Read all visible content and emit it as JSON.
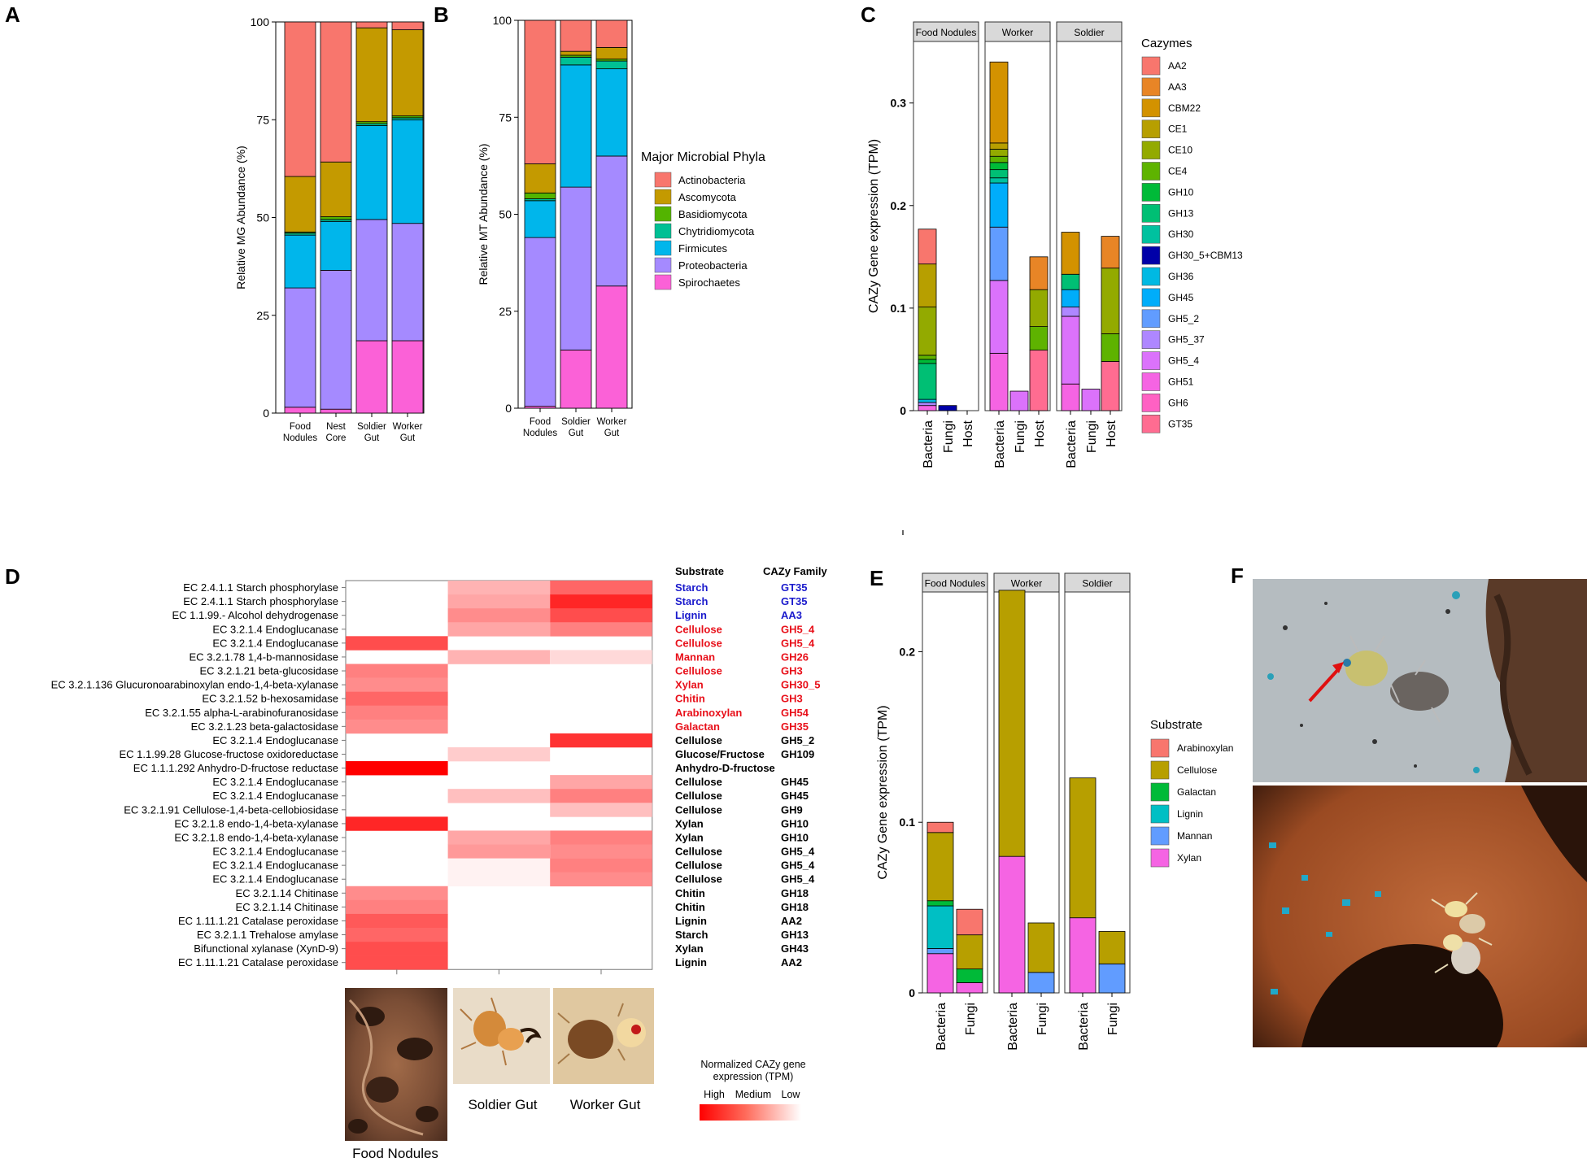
{
  "colors": {
    "Actinobacteria": "#f8766d",
    "Ascomycota": "#c49a00",
    "Basidiomycota": "#53b400",
    "Chytridiomycota": "#00c094",
    "Firmicutes": "#00b6eb",
    "Proteobacteria": "#a58aff",
    "Spirochaetes": "#fb61d7",
    "AA2": "#f8766d",
    "AA3": "#e88526",
    "CBM22": "#d39200",
    "CE1": "#b79f00",
    "CE10": "#93aa00",
    "CE4": "#5eb300",
    "GH10": "#00ba38",
    "GH13": "#00bf74",
    "GH30": "#00c19f",
    "GH30_5+CBM13": "#0000a8",
    "GH36": "#00b9e3",
    "GH45": "#00adfa",
    "GH5_2": "#619cff",
    "GH5_37": "#ae87ff",
    "GH5_4": "#db72fb",
    "GH51": "#f564e3",
    "GH6": "#ff61c3",
    "GT35": "#ff6c91",
    "Arabinoxylan": "#f8766d",
    "Cellulose": "#b79f00",
    "Galactan": "#00ba38",
    "Lignin": "#00bfc4",
    "Mannan": "#619cff",
    "Xylan": "#f564e3",
    "heat_high": "#ff0000",
    "heat_low": "#ffffff",
    "label_blue": "#1a1acc",
    "label_red": "#e8101a"
  },
  "panel_labels": {
    "A": "A",
    "B": "B",
    "C": "C",
    "D": "D",
    "E": "E",
    "F": "F"
  },
  "chart_data": [
    {
      "id": "A",
      "type": "bar",
      "stacked": true,
      "title": "",
      "xlabel": "",
      "ylabel": "Relative MG Abundance (%)",
      "ylim": [
        0,
        100
      ],
      "yticks": [
        0,
        25,
        50,
        75,
        100
      ],
      "categories": [
        "Food Nodules",
        "Nest Core",
        "Soldier Gut",
        "Worker Gut"
      ],
      "series": [
        {
          "name": "Spirochaetes",
          "values": [
            1.5,
            1.0,
            18.5,
            18.5
          ]
        },
        {
          "name": "Proteobacteria",
          "values": [
            30.5,
            35.5,
            31.0,
            30.0
          ]
        },
        {
          "name": "Firmicutes",
          "values": [
            13.5,
            12.5,
            24.0,
            26.5
          ]
        },
        {
          "name": "Chytridiomycota",
          "values": [
            0.5,
            0.5,
            0.5,
            0.5
          ]
        },
        {
          "name": "Basidiomycota",
          "values": [
            0.3,
            0.7,
            0.5,
            0.5
          ]
        },
        {
          "name": "Ascomycota",
          "values": [
            14.2,
            14.0,
            24.0,
            22.0
          ]
        },
        {
          "name": "Actinobacteria",
          "values": [
            39.5,
            35.8,
            1.5,
            2.0
          ]
        }
      ]
    },
    {
      "id": "B",
      "type": "bar",
      "stacked": true,
      "title": "",
      "xlabel": "",
      "ylabel": "Relative MT Abundance (%)",
      "ylim": [
        0,
        100
      ],
      "yticks": [
        0,
        25,
        50,
        75,
        100
      ],
      "categories": [
        "Food Nodules",
        "Soldier Gut",
        "Worker Gut"
      ],
      "legend_title": "Major Microbial Phyla",
      "legend": [
        "Actinobacteria",
        "Ascomycota",
        "Basidiomycota",
        "Chytridiomycota",
        "Firmicutes",
        "Proteobacteria",
        "Spirochaetes"
      ],
      "series": [
        {
          "name": "Spirochaetes",
          "values": [
            0.5,
            15.0,
            31.5
          ]
        },
        {
          "name": "Proteobacteria",
          "values": [
            43.5,
            42.0,
            33.5
          ]
        },
        {
          "name": "Firmicutes",
          "values": [
            9.5,
            31.5,
            22.5
          ]
        },
        {
          "name": "Chytridiomycota",
          "values": [
            0.5,
            2.0,
            2.0
          ]
        },
        {
          "name": "Basidiomycota",
          "values": [
            1.5,
            0.5,
            0.5
          ]
        },
        {
          "name": "Ascomycota",
          "values": [
            7.5,
            1.0,
            3.0
          ]
        },
        {
          "name": "Actinobacteria",
          "values": [
            37.0,
            8.0,
            7.0
          ]
        }
      ]
    },
    {
      "id": "C",
      "type": "bar",
      "stacked": true,
      "faceted": true,
      "title": "",
      "xlabel": "",
      "ylabel": "CAZy Gene expression (TPM)",
      "ylim": [
        0,
        0.36
      ],
      "yticks": [
        0,
        0.1,
        0.2,
        0.3
      ],
      "facets": [
        "Food Nodules",
        "Worker",
        "Soldier"
      ],
      "categories": [
        "Bacteria",
        "Fungi",
        "Host"
      ],
      "legend_title": "Cazymes",
      "legend": [
        "AA2",
        "AA3",
        "CBM22",
        "CE1",
        "CE10",
        "CE4",
        "GH10",
        "GH13",
        "GH30",
        "GH30_5+CBM13",
        "GH36",
        "GH45",
        "GH5_2",
        "GH5_37",
        "GH5_4",
        "GH51",
        "GH6",
        "GT35"
      ],
      "stacks": {
        "Food Nodules": {
          "Bacteria": [
            [
              "GH51",
              0.005
            ],
            [
              "GH5_37",
              0.003
            ],
            [
              "GH36",
              0.003
            ],
            [
              "GH13",
              0.035
            ],
            [
              "GH10",
              0.004
            ],
            [
              "CE4",
              0.004
            ],
            [
              "CE10",
              0.047
            ],
            [
              "CE1",
              0.042
            ],
            [
              "AA2",
              0.034
            ]
          ],
          "Fungi": [
            [
              "GH30_5+CBM13",
              0.005
            ]
          ],
          "Host": []
        },
        "Worker": {
          "Bacteria": [
            [
              "GH51",
              0.056
            ],
            [
              "GH5_4",
              0.071
            ],
            [
              "GH5_2",
              0.052
            ],
            [
              "GH45",
              0.043
            ],
            [
              "GH30",
              0.005
            ],
            [
              "GH13",
              0.008
            ],
            [
              "GH10",
              0.007
            ],
            [
              "CE4",
              0.006
            ],
            [
              "CE10",
              0.007
            ],
            [
              "CE1",
              0.006
            ],
            [
              "CBM22",
              0.079
            ]
          ],
          "Fungi": [
            [
              "GH5_4",
              0.019
            ]
          ],
          "Host": [
            [
              "GT35",
              0.059
            ],
            [
              "CE4",
              0.023
            ],
            [
              "CE10",
              0.036
            ],
            [
              "AA3",
              0.032
            ]
          ]
        },
        "Soldier": {
          "Bacteria": [
            [
              "GH51",
              0.026
            ],
            [
              "GH5_4",
              0.066
            ],
            [
              "GH5_37",
              0.009
            ],
            [
              "GH45",
              0.017
            ],
            [
              "GH13",
              0.015
            ],
            [
              "CBM22",
              0.041
            ]
          ],
          "Fungi": [
            [
              "GH5_4",
              0.021
            ]
          ],
          "Host": [
            [
              "GT35",
              0.048
            ],
            [
              "CE4",
              0.027
            ],
            [
              "CE10",
              0.064
            ],
            [
              "AA3",
              0.031
            ]
          ]
        }
      }
    },
    {
      "id": "D",
      "type": "heatmap",
      "title": "",
      "columns": [
        "Food Nodules",
        "Soldier Gut",
        "Worker Gut"
      ],
      "scale_title": "Normalized CAZy gene expression (TPM)",
      "scale_labels": [
        "High",
        "Medium",
        "Low"
      ],
      "rows": [
        {
          "enzyme": "EC 2.4.1.1 Starch phosphorylase",
          "substrate": "Starch",
          "family": "GT35",
          "color": "blue",
          "values": [
            0,
            0.3,
            0.6
          ]
        },
        {
          "enzyme": "EC 2.4.1.1 Starch phosphorylase",
          "substrate": "Starch",
          "family": "GT35",
          "color": "blue",
          "values": [
            0,
            0.35,
            0.85
          ]
        },
        {
          "enzyme": "EC 1.1.99.- Alcohol dehydrogenase",
          "substrate": "Lignin",
          "family": "AA3",
          "color": "blue",
          "values": [
            0,
            0.45,
            0.7
          ]
        },
        {
          "enzyme": "EC 3.2.1.4  Endoglucanase",
          "substrate": "Cellulose",
          "family": "GH5_4",
          "color": "red",
          "values": [
            0,
            0.35,
            0.5
          ]
        },
        {
          "enzyme": "EC 3.2.1.4  Endoglucanase",
          "substrate": "Cellulose",
          "family": "GH5_4",
          "color": "red",
          "values": [
            0.7,
            0,
            0
          ]
        },
        {
          "enzyme": "EC 3.2.1.78 1,4-b-mannosidase",
          "substrate": "Mannan",
          "family": "GH26",
          "color": "red",
          "values": [
            0,
            0.3,
            0.15
          ]
        },
        {
          "enzyme": "EC 3.2.1.21 beta-glucosidase",
          "substrate": "Cellulose",
          "family": "GH3",
          "color": "red",
          "values": [
            0.5,
            0,
            0
          ]
        },
        {
          "enzyme": "EC 3.2.1.136 Glucuronoarabinoxylan endo-1,4-beta-xylanase",
          "substrate": "Xylan",
          "family": "GH30_5",
          "color": "red",
          "values": [
            0.45,
            0,
            0
          ]
        },
        {
          "enzyme": "EC 3.2.1.52 b-hexosamidase",
          "substrate": "Chitin",
          "family": "GH3",
          "color": "red",
          "values": [
            0.6,
            0,
            0
          ]
        },
        {
          "enzyme": "EC 3.2.1.55 alpha-L-arabinofuranosidase",
          "substrate": "Arabinoxylan",
          "family": "GH54",
          "color": "red",
          "values": [
            0.5,
            0,
            0
          ]
        },
        {
          "enzyme": "EC 3.2.1.23 beta-galactosidase",
          "substrate": "Galactan",
          "family": "GH35",
          "color": "red",
          "values": [
            0.45,
            0,
            0
          ]
        },
        {
          "enzyme": "EC 3.2.1.4  Endoglucanase",
          "substrate": "Cellulose",
          "family": "GH5_2",
          "color": "black",
          "values": [
            0,
            0,
            0.8
          ]
        },
        {
          "enzyme": "EC 1.1.99.28 Glucose-fructose oxidoreductase",
          "substrate": "Glucose/Fructose",
          "family": "GH109",
          "color": "black",
          "values": [
            0,
            0.2,
            0
          ]
        },
        {
          "enzyme": "EC 1.1.1.292 Anhydro-D-fructose reductase",
          "substrate": "Anhydro-D-fructose",
          "family": "",
          "color": "black",
          "values": [
            1.0,
            0,
            0
          ]
        },
        {
          "enzyme": "EC 3.2.1.4  Endoglucanase",
          "substrate": "Cellulose",
          "family": "GH45",
          "color": "black",
          "values": [
            0,
            0,
            0.35
          ]
        },
        {
          "enzyme": "EC 3.2.1.4  Endoglucanase",
          "substrate": "Cellulose",
          "family": "GH45",
          "color": "black",
          "values": [
            0,
            0.25,
            0.5
          ]
        },
        {
          "enzyme": "EC 3.2.1.91 Cellulose-1,4-beta-cellobiosidase",
          "substrate": "Cellulose",
          "family": "GH9",
          "color": "black",
          "values": [
            0,
            0,
            0.25
          ]
        },
        {
          "enzyme": "EC 3.2.1.8  endo-1,4-beta-xylanase",
          "substrate": "Xylan",
          "family": "GH10",
          "color": "black",
          "values": [
            0.85,
            0,
            0
          ]
        },
        {
          "enzyme": "EC 3.2.1.8  endo-1,4-beta-xylanase",
          "substrate": "Xylan",
          "family": "GH10",
          "color": "black",
          "values": [
            0,
            0.35,
            0.5
          ]
        },
        {
          "enzyme": "EC 3.2.1.4  Endoglucanase",
          "substrate": "Cellulose",
          "family": "GH5_4",
          "color": "black",
          "values": [
            0,
            0.4,
            0.45
          ]
        },
        {
          "enzyme": "EC 3.2.1.4  Endoglucanase",
          "substrate": "Cellulose",
          "family": "GH5_4",
          "color": "black",
          "values": [
            0,
            0.05,
            0.5
          ]
        },
        {
          "enzyme": "EC 3.2.1.4  Endoglucanase",
          "substrate": "Cellulose",
          "family": "GH5_4",
          "color": "black",
          "values": [
            0,
            0.05,
            0.45
          ]
        },
        {
          "enzyme": "EC 3.2.1.14 Chitinase",
          "substrate": "Chitin",
          "family": "GH18",
          "color": "black",
          "values": [
            0.45,
            0,
            0
          ]
        },
        {
          "enzyme": "EC 3.2.1.14 Chitinase",
          "substrate": "Chitin",
          "family": "GH18",
          "color": "black",
          "values": [
            0.5,
            0,
            0
          ]
        },
        {
          "enzyme": "EC 1.11.1.21 Catalase peroxidase",
          "substrate": "Lignin",
          "family": "AA2",
          "color": "black",
          "values": [
            0.65,
            0,
            0
          ]
        },
        {
          "enzyme": "EC 3.2.1.1 Trehalose amylase",
          "substrate": "Starch",
          "family": "GH13",
          "color": "black",
          "values": [
            0.6,
            0,
            0
          ]
        },
        {
          "enzyme": "Bifunctional xylanase (XynD-9)",
          "substrate": "Xylan",
          "family": "GH43",
          "color": "black",
          "values": [
            0.7,
            0,
            0
          ]
        },
        {
          "enzyme": "EC 1.11.1.21 Catalase peroxidase",
          "substrate": "Lignin",
          "family": "AA2",
          "color": "black",
          "values": [
            0.7,
            0,
            0
          ]
        }
      ]
    },
    {
      "id": "E",
      "type": "bar",
      "stacked": true,
      "faceted": true,
      "title": "",
      "xlabel": "",
      "ylabel": "CAZy Gene expression (TPM)",
      "ylim": [
        0,
        0.235
      ],
      "yticks": [
        0,
        0.1,
        0.2
      ],
      "facets": [
        "Food Nodules",
        "Worker",
        "Soldier"
      ],
      "categories": [
        "Bacteria",
        "Fungi"
      ],
      "legend_title": "Substrate",
      "legend": [
        "Arabinoxylan",
        "Cellulose",
        "Galactan",
        "Lignin",
        "Mannan",
        "Xylan"
      ],
      "stacks": {
        "Food Nodules": {
          "Bacteria": [
            [
              "Xylan",
              0.023
            ],
            [
              "Mannan",
              0.003
            ],
            [
              "Lignin",
              0.025
            ],
            [
              "Galactan",
              0.003
            ],
            [
              "Cellulose",
              0.04
            ],
            [
              "Arabinoxylan",
              0.006
            ]
          ],
          "Fungi": [
            [
              "Xylan",
              0.006
            ],
            [
              "Galactan",
              0.008
            ],
            [
              "Cellulose",
              0.02
            ],
            [
              "Arabinoxylan",
              0.015
            ]
          ]
        },
        "Worker": {
          "Bacteria": [
            [
              "Xylan",
              0.08
            ],
            [
              "Cellulose",
              0.156
            ]
          ],
          "Fungi": [
            [
              "Mannan",
              0.012
            ],
            [
              "Cellulose",
              0.029
            ]
          ]
        },
        "Soldier": {
          "Bacteria": [
            [
              "Xylan",
              0.044
            ],
            [
              "Cellulose",
              0.082
            ]
          ],
          "Fungi": [
            [
              "Mannan",
              0.017
            ],
            [
              "Cellulose",
              0.019
            ]
          ]
        }
      }
    }
  ],
  "photo_captions": {
    "food_nodules": "Food Nodules",
    "soldier_gut": "Soldier Gut",
    "worker_gut": "Worker Gut"
  },
  "table_headers": {
    "substrate": "Substrate",
    "family": "CAZy Family"
  }
}
